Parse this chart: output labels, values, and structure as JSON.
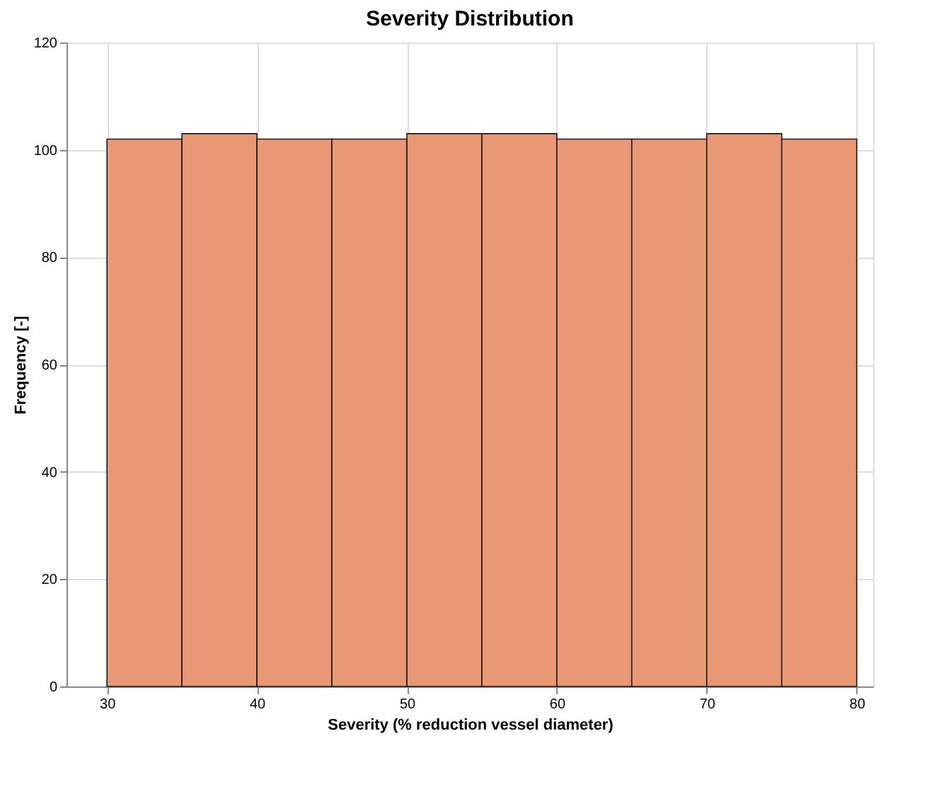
{
  "chart_data": {
    "type": "histogram",
    "title": "Severity Distribution",
    "xlabel": "Severity (% reduction vessel diameter)",
    "ylabel": "Frequency [-]",
    "bins": [
      30,
      35,
      40,
      45,
      50,
      55,
      60,
      65,
      70,
      75,
      80
    ],
    "values": [
      102,
      103,
      102,
      102,
      103,
      103,
      102,
      102,
      103,
      102
    ],
    "color": "#e89875",
    "xlim": [
      27.3,
      81.1
    ],
    "xticks": [
      30,
      40,
      50,
      60,
      70,
      80
    ],
    "ylim": [
      0,
      120
    ],
    "yticks": [
      0,
      20,
      40,
      60,
      80,
      100,
      120
    ],
    "grid": true
  }
}
